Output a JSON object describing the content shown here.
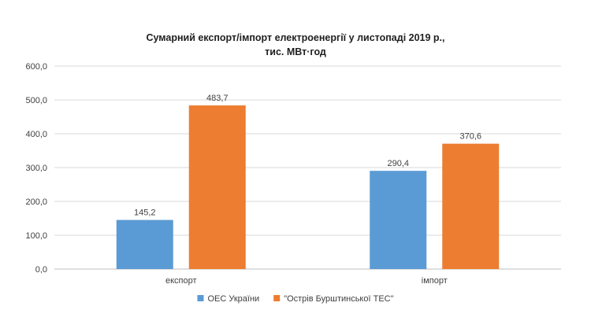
{
  "chart_data": {
    "type": "bar",
    "title_line1": "Сумарний експорт/імпорт електроенергії у листопаді 2019 р.,",
    "title_line2": "тис. МВт·год",
    "categories": [
      "експорт",
      "імпорт"
    ],
    "series": [
      {
        "name": "ОЕС України",
        "values": [
          145.2,
          290.4
        ],
        "labels": [
          "145,2",
          "290,4"
        ],
        "color": "#5b9bd5"
      },
      {
        "name": "\"Острів Бурштинської ТЕС\"",
        "values": [
          483.7,
          370.6
        ],
        "labels": [
          "483,7",
          "370,6"
        ],
        "color": "#ed7d31"
      }
    ],
    "yticks": [
      0,
      100,
      200,
      300,
      400,
      500,
      600
    ],
    "ytick_labels": [
      "0,0",
      "100,0",
      "200,0",
      "300,0",
      "400,0",
      "500,0",
      "600,0"
    ],
    "ylim": [
      0,
      600
    ],
    "xlabel": "",
    "ylabel": "",
    "grid": true,
    "legend": "bottom-center"
  }
}
